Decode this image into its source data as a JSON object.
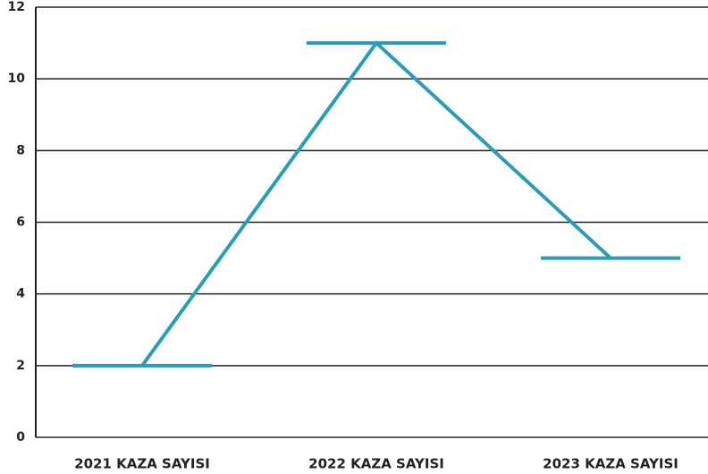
{
  "chart_data": {
    "type": "line",
    "categories": [
      "2021 KAZA SAYISI",
      "2022 KAZA SAYISI",
      "2023 KAZA SAYISI"
    ],
    "values": [
      2,
      11,
      5
    ],
    "color": "#2a9db5",
    "ylim": [
      0,
      12
    ],
    "yticks": [
      0,
      2,
      4,
      6,
      8,
      10,
      12
    ],
    "grid": true
  }
}
